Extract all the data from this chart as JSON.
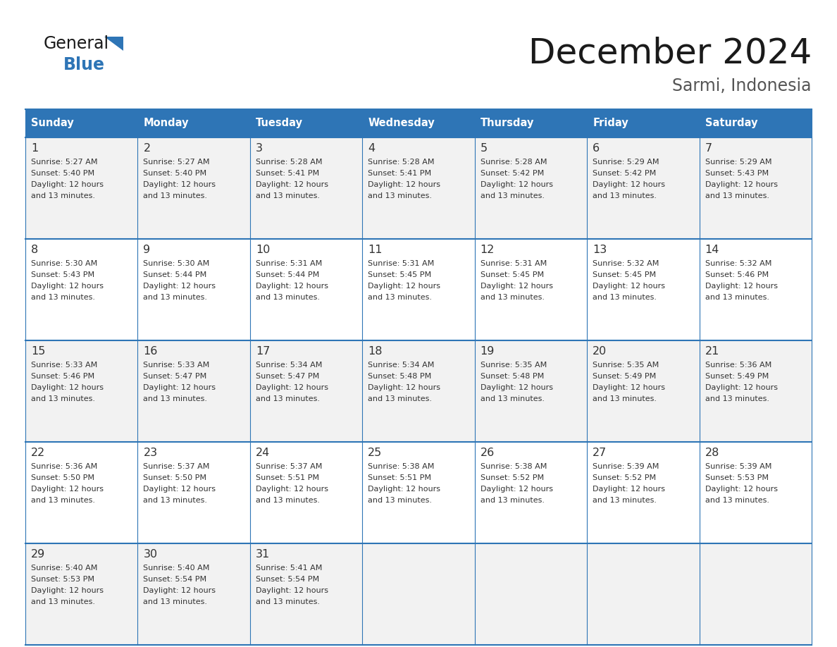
{
  "title": "December 2024",
  "subtitle": "Sarmi, Indonesia",
  "header_color": "#2E75B6",
  "header_text_color": "#FFFFFF",
  "row_colors": [
    "#F2F2F2",
    "#FFFFFF",
    "#F2F2F2",
    "#FFFFFF",
    "#F2F2F2"
  ],
  "text_color": "#333333",
  "line_color": "#2E75B6",
  "days_of_week": [
    "Sunday",
    "Monday",
    "Tuesday",
    "Wednesday",
    "Thursday",
    "Friday",
    "Saturday"
  ],
  "weeks": [
    [
      {
        "day": 1,
        "sunrise": "5:27 AM",
        "sunset": "5:40 PM"
      },
      {
        "day": 2,
        "sunrise": "5:27 AM",
        "sunset": "5:40 PM"
      },
      {
        "day": 3,
        "sunrise": "5:28 AM",
        "sunset": "5:41 PM"
      },
      {
        "day": 4,
        "sunrise": "5:28 AM",
        "sunset": "5:41 PM"
      },
      {
        "day": 5,
        "sunrise": "5:28 AM",
        "sunset": "5:42 PM"
      },
      {
        "day": 6,
        "sunrise": "5:29 AM",
        "sunset": "5:42 PM"
      },
      {
        "day": 7,
        "sunrise": "5:29 AM",
        "sunset": "5:43 PM"
      }
    ],
    [
      {
        "day": 8,
        "sunrise": "5:30 AM",
        "sunset": "5:43 PM"
      },
      {
        "day": 9,
        "sunrise": "5:30 AM",
        "sunset": "5:44 PM"
      },
      {
        "day": 10,
        "sunrise": "5:31 AM",
        "sunset": "5:44 PM"
      },
      {
        "day": 11,
        "sunrise": "5:31 AM",
        "sunset": "5:45 PM"
      },
      {
        "day": 12,
        "sunrise": "5:31 AM",
        "sunset": "5:45 PM"
      },
      {
        "day": 13,
        "sunrise": "5:32 AM",
        "sunset": "5:45 PM"
      },
      {
        "day": 14,
        "sunrise": "5:32 AM",
        "sunset": "5:46 PM"
      }
    ],
    [
      {
        "day": 15,
        "sunrise": "5:33 AM",
        "sunset": "5:46 PM"
      },
      {
        "day": 16,
        "sunrise": "5:33 AM",
        "sunset": "5:47 PM"
      },
      {
        "day": 17,
        "sunrise": "5:34 AM",
        "sunset": "5:47 PM"
      },
      {
        "day": 18,
        "sunrise": "5:34 AM",
        "sunset": "5:48 PM"
      },
      {
        "day": 19,
        "sunrise": "5:35 AM",
        "sunset": "5:48 PM"
      },
      {
        "day": 20,
        "sunrise": "5:35 AM",
        "sunset": "5:49 PM"
      },
      {
        "day": 21,
        "sunrise": "5:36 AM",
        "sunset": "5:49 PM"
      }
    ],
    [
      {
        "day": 22,
        "sunrise": "5:36 AM",
        "sunset": "5:50 PM"
      },
      {
        "day": 23,
        "sunrise": "5:37 AM",
        "sunset": "5:50 PM"
      },
      {
        "day": 24,
        "sunrise": "5:37 AM",
        "sunset": "5:51 PM"
      },
      {
        "day": 25,
        "sunrise": "5:38 AM",
        "sunset": "5:51 PM"
      },
      {
        "day": 26,
        "sunrise": "5:38 AM",
        "sunset": "5:52 PM"
      },
      {
        "day": 27,
        "sunrise": "5:39 AM",
        "sunset": "5:52 PM"
      },
      {
        "day": 28,
        "sunrise": "5:39 AM",
        "sunset": "5:53 PM"
      }
    ],
    [
      {
        "day": 29,
        "sunrise": "5:40 AM",
        "sunset": "5:53 PM"
      },
      {
        "day": 30,
        "sunrise": "5:40 AM",
        "sunset": "5:54 PM"
      },
      {
        "day": 31,
        "sunrise": "5:41 AM",
        "sunset": "5:54 PM"
      },
      null,
      null,
      null,
      null
    ]
  ],
  "logo_text_general": "General",
  "logo_text_blue": "Blue",
  "logo_color_general": "#1a1a1a",
  "logo_color_blue": "#2E75B6",
  "daylight_line1": "Daylight: 12 hours",
  "daylight_line2": "and 13 minutes."
}
